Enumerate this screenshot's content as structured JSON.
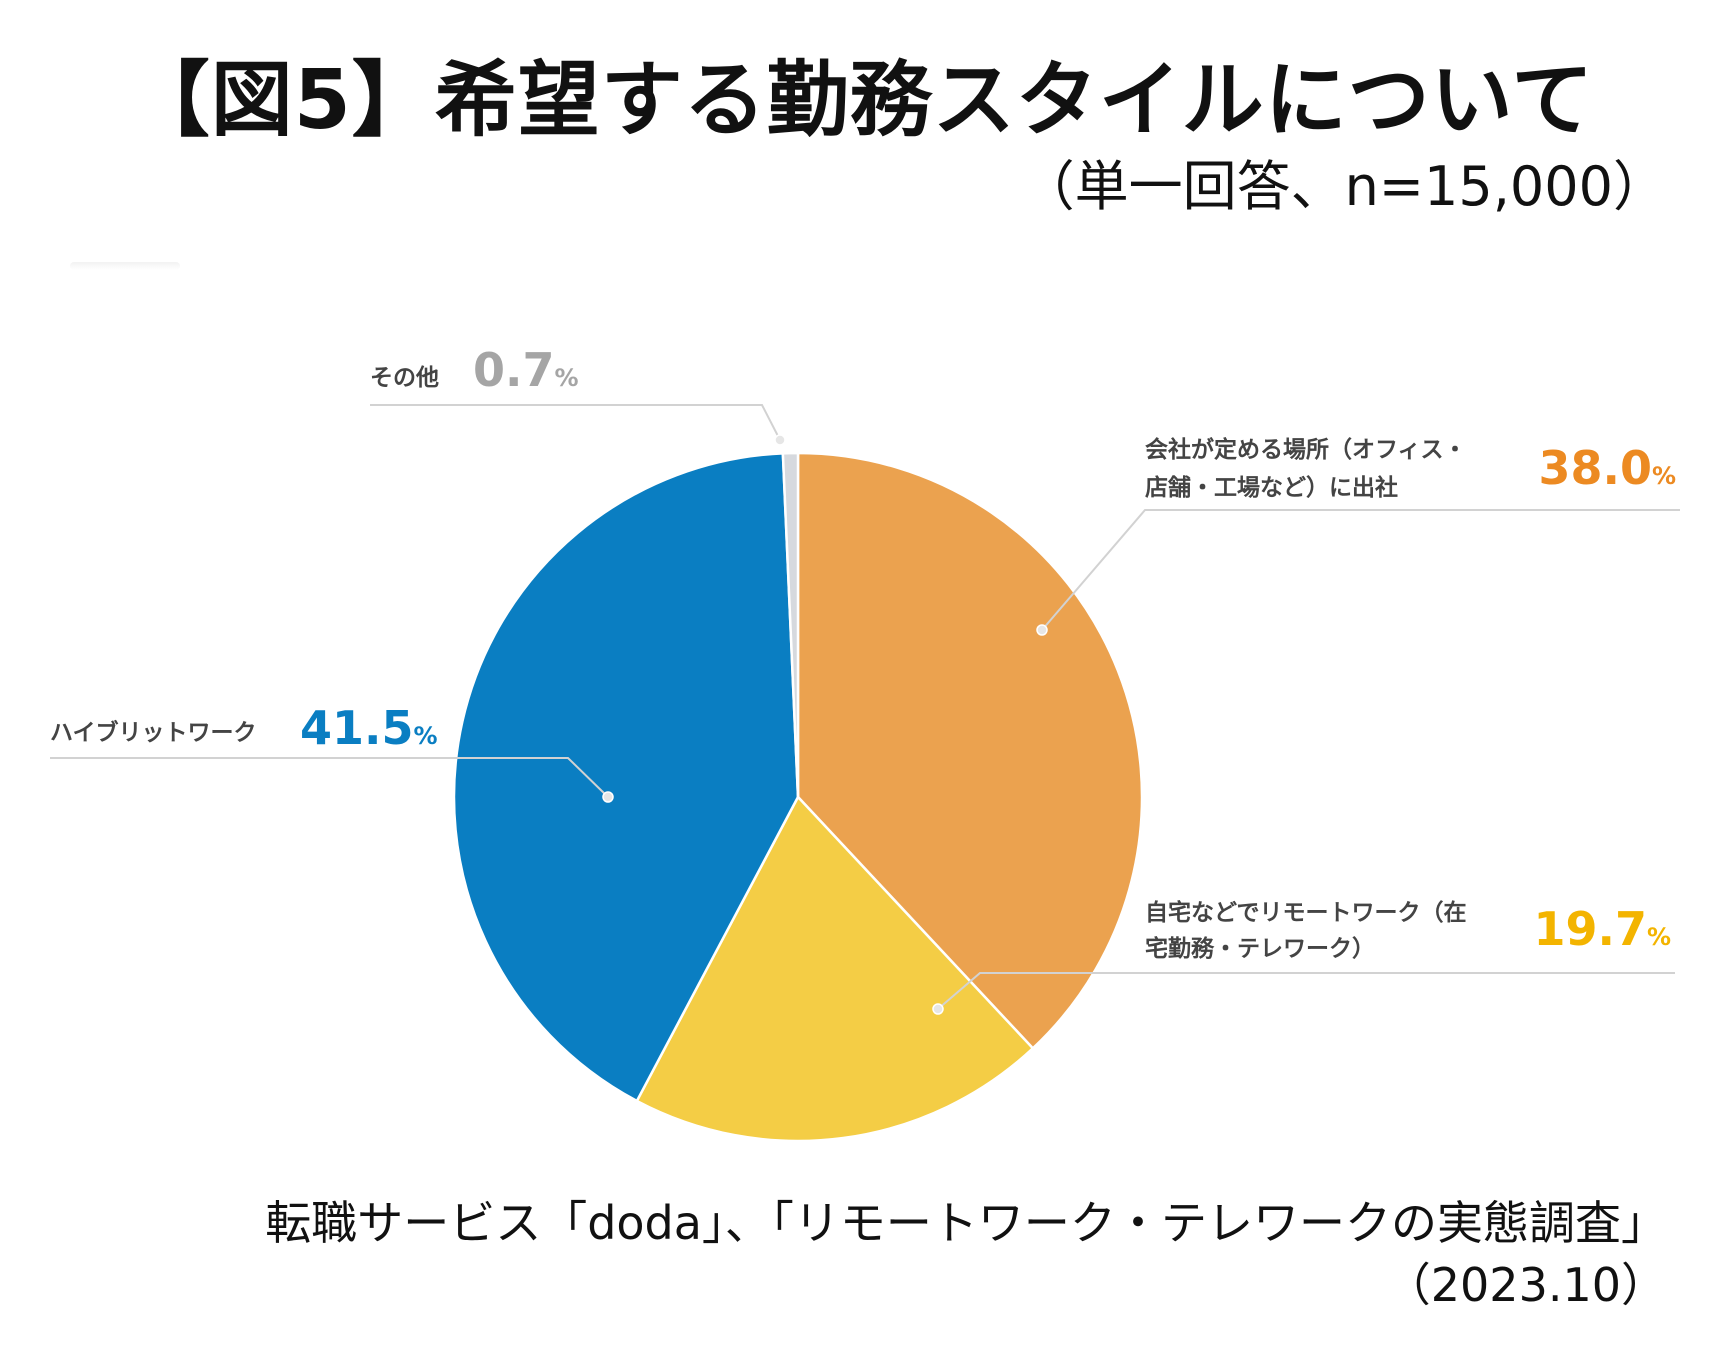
{
  "header": {
    "title": "【図5】希望する勤務スタイルについて",
    "subtitle": "（単一回答、n=15,000）"
  },
  "chart_data": {
    "type": "pie",
    "unit": "%",
    "slices": [
      {
        "name": "company",
        "label_lines": [
          "会社が定める場所（オフィス・",
          "店舗・工場など）に出社"
        ],
        "value": 38.0,
        "value_text": "38.0",
        "color": "#EBA24F",
        "value_color": "#EC8A22"
      },
      {
        "name": "remote",
        "label_lines": [
          "自宅などでリモートワーク（在",
          "宅勤務・テレワーク）"
        ],
        "value": 19.7,
        "value_text": "19.7",
        "color": "#F4CD45",
        "value_color": "#F3B400"
      },
      {
        "name": "hybrid",
        "label_lines": [
          "ハイブリットワーク"
        ],
        "value": 41.5,
        "value_text": "41.5",
        "color": "#0A7EC2",
        "value_color": "#0A7EC2"
      },
      {
        "name": "other",
        "label_lines": [
          "その他"
        ],
        "value": 0.7,
        "value_text": "0.7",
        "color": "#D6D9DE",
        "value_color": "#A5A5A5"
      }
    ],
    "percent_symbol": "%"
  },
  "footer": {
    "source": "転職サービス「doda」、「リモートワーク・テレワークの実態調査」",
    "date": "（2023.10）"
  }
}
